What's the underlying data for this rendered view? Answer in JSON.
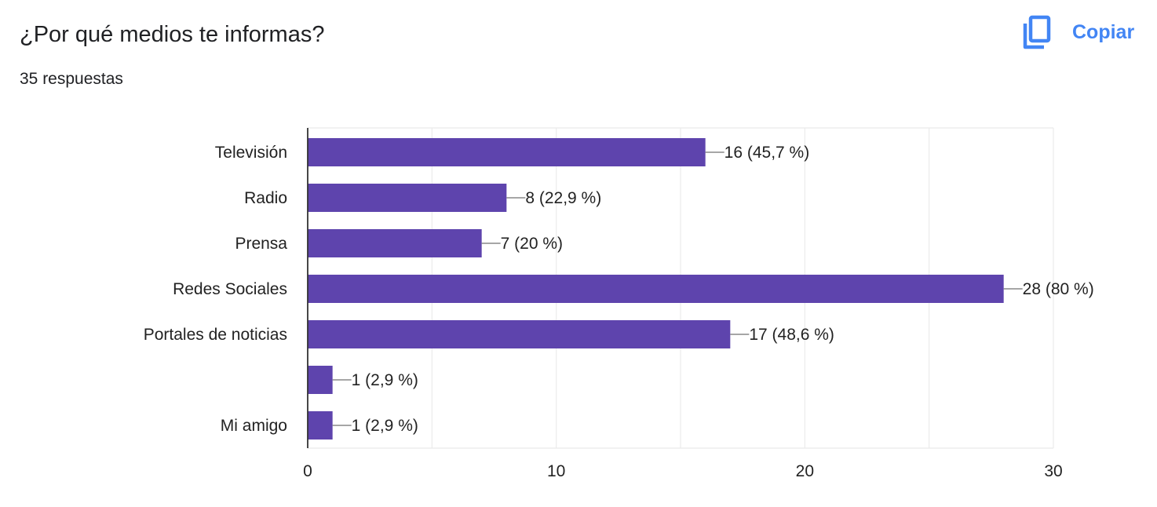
{
  "header": {
    "title": "¿Por qué medios te informas?",
    "response_count": "35 respuestas",
    "copy_label": "Copiar",
    "copy_icon": "copy-icon"
  },
  "colors": {
    "bar": "#5e44ad",
    "accent": "#4285f4",
    "grid": "#ebebeb",
    "axis": "#333333",
    "text": "#222222"
  },
  "chart_data": {
    "type": "bar",
    "orientation": "horizontal",
    "categories": [
      "Televisión",
      "Radio",
      "Prensa",
      "Redes Sociales",
      "Portales de noticias",
      "",
      "Mi amigo"
    ],
    "values": [
      16,
      8,
      7,
      28,
      17,
      1,
      1
    ],
    "data_labels": [
      "16 (45,7 %)",
      "8 (22,9 %)",
      "7 (20 %)",
      "28 (80 %)",
      "17 (48,6 %)",
      "1 (2,9 %)",
      "1 (2,9 %)"
    ],
    "xlim": [
      0,
      30
    ],
    "x_ticks": [
      0,
      10,
      20,
      30
    ],
    "grid": true,
    "legend": "none"
  }
}
